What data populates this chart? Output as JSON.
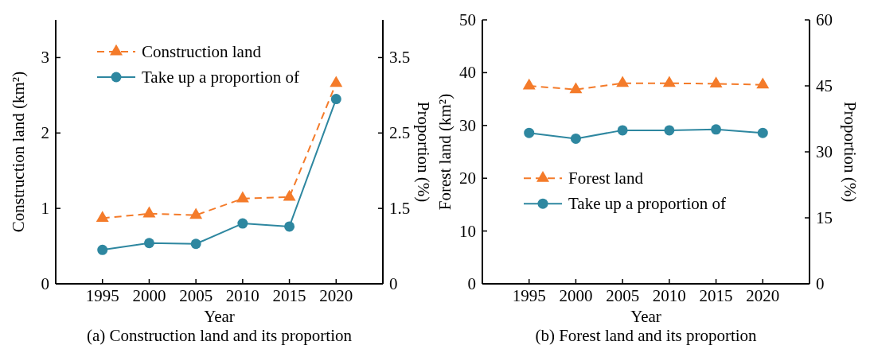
{
  "chart_data": [
    {
      "type": "line",
      "title": "(a) Construction land and its proportion",
      "xlabel": "Year",
      "ylabel": "Construction land (km²)",
      "y2label": "Proportion (%)",
      "xlim": [
        1990,
        2025
      ],
      "xticks": [
        1995,
        2000,
        2005,
        2010,
        2015,
        2020
      ],
      "ylim": [
        0,
        3.5
      ],
      "yticks": [
        0,
        1,
        2,
        3
      ],
      "y2lim": [
        0.5,
        4
      ],
      "y2ticks": [
        {
          "value": 0.5,
          "label": "0"
        },
        1.5,
        2.5,
        3.5
      ],
      "legend": "top left",
      "x": [
        1995,
        2000,
        2005,
        2010,
        2015,
        2020
      ],
      "series": [
        {
          "name": "Construction land",
          "color": "#f47b2a",
          "marker": "triangle",
          "line_style": "dashed",
          "values": [
            0.87,
            0.93,
            0.91,
            1.13,
            1.15,
            2.66
          ]
        },
        {
          "name": "Take up a proportion of",
          "color": "#2e87a0",
          "marker": "circle",
          "line_style": "solid",
          "axis": "y2",
          "values": [
            0.95,
            1.04,
            1.03,
            1.3,
            1.26,
            2.95
          ]
        }
      ]
    },
    {
      "type": "line",
      "title": "(b) Forest land and its proportion",
      "xlabel": "Year",
      "ylabel": "Forest land (km²)",
      "y2label": "Proportion (%)",
      "xlim": [
        1990,
        2025
      ],
      "xticks": [
        1995,
        2000,
        2005,
        2010,
        2015,
        2020
      ],
      "ylim": [
        0,
        50
      ],
      "yticks": [
        0,
        10,
        20,
        30,
        40,
        50
      ],
      "y2lim": [
        0,
        60
      ],
      "y2ticks": [
        0,
        15,
        30,
        45,
        60
      ],
      "legend": "left",
      "x": [
        1995,
        2000,
        2005,
        2010,
        2015,
        2020
      ],
      "series": [
        {
          "name": "Forest land",
          "color": "#f47b2a",
          "marker": "triangle",
          "line_style": "dashed",
          "values": [
            37.5,
            36.8,
            38.0,
            38.0,
            37.9,
            37.7
          ]
        },
        {
          "name": "Take up a proportion of",
          "color": "#2e87a0",
          "marker": "circle",
          "line_style": "solid",
          "axis": "y2",
          "values": [
            34.3,
            33.0,
            34.9,
            34.9,
            35.1,
            34.3
          ]
        }
      ]
    }
  ]
}
